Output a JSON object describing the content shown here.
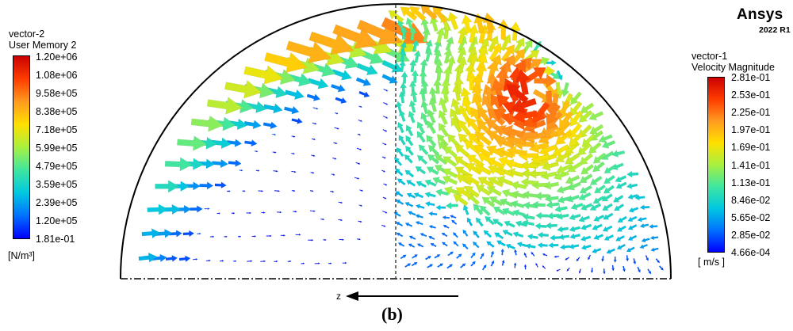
{
  "brand": {
    "name": "Ansys",
    "version": "2022 R1"
  },
  "legend_left": {
    "title_line1": "vector-2",
    "title_line2": "User Memory 2",
    "ticks": [
      "1.20e+06",
      "1.08e+06",
      "9.58e+05",
      "8.38e+05",
      "7.18e+05",
      "5.99e+05",
      "4.79e+05",
      "3.59e+05",
      "2.39e+05",
      "1.20e+05",
      "1.81e-01"
    ],
    "unit": "[N/m³]"
  },
  "legend_right": {
    "title_line1": "vector-1",
    "title_line2": "Velocity Magnitude",
    "ticks": [
      "2.81e-01",
      "2.53e-01",
      "2.25e-01",
      "1.97e-01",
      "1.69e-01",
      "1.41e-01",
      "1.13e-01",
      "8.46e-02",
      "5.65e-02",
      "2.85e-02",
      "4.66e-04"
    ],
    "unit": "[ m/s ]"
  },
  "axis": {
    "label": "z"
  },
  "caption": "(b)",
  "colors": {
    "colormap": [
      "#0000ff",
      "#0072ff",
      "#00c8e0",
      "#3fe6a0",
      "#a8f040",
      "#ffe000",
      "#ff9b20",
      "#ff3c00",
      "#cc0000"
    ]
  },
  "chart_data": [
    {
      "type": "vector-field",
      "field": "User Memory 2",
      "region": "left half-disk",
      "range": [
        0.181,
        1200000
      ],
      "unit": "N/m³"
    },
    {
      "type": "vector-field",
      "field": "Velocity Magnitude",
      "region": "right half-disk",
      "range": [
        0.000466,
        0.281
      ],
      "unit": "m/s"
    }
  ]
}
